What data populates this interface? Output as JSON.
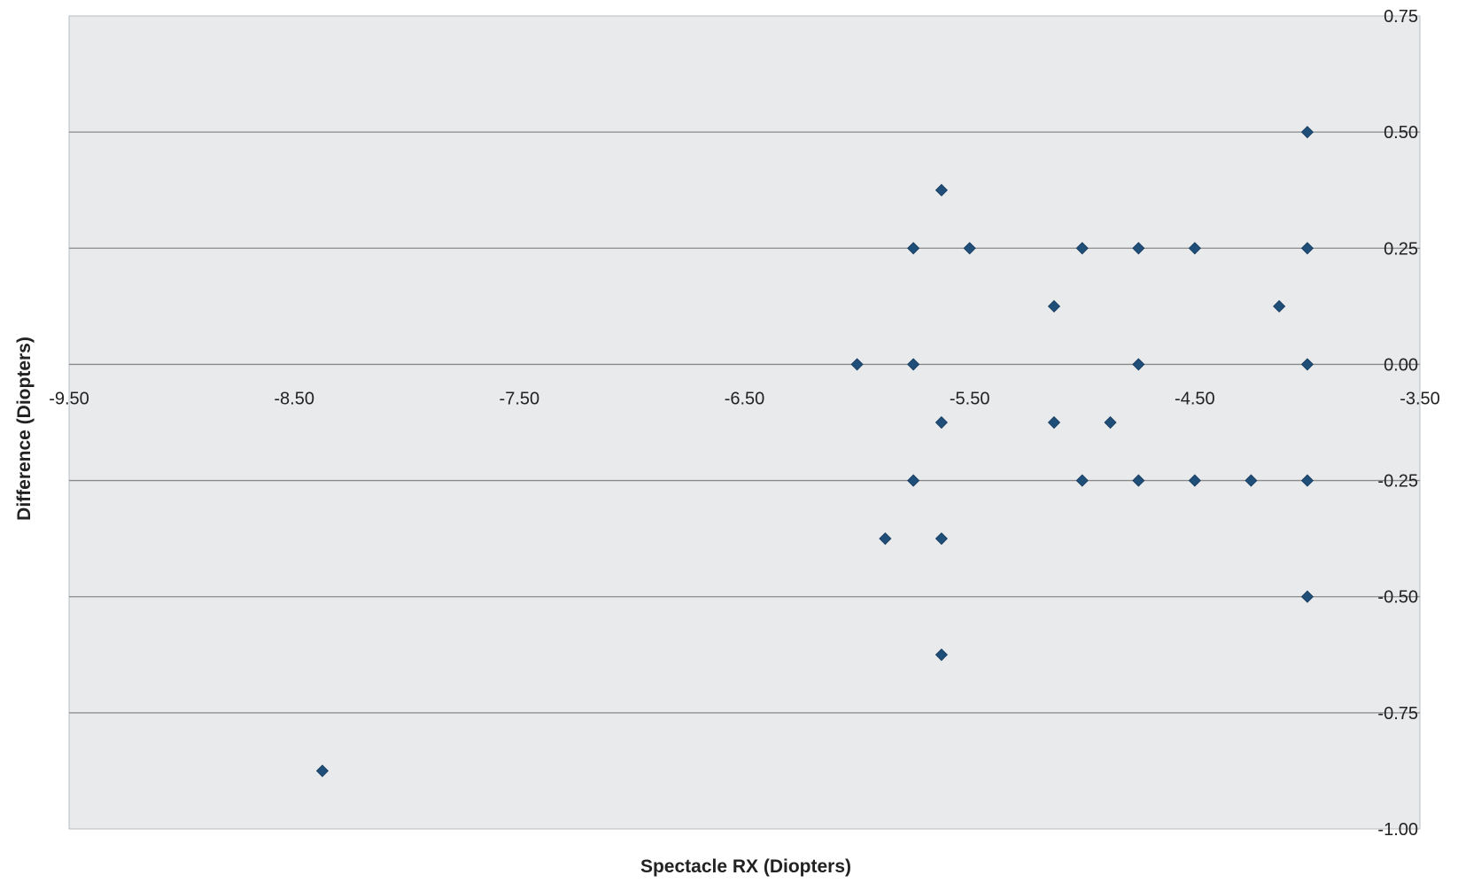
{
  "chart_data": {
    "type": "scatter",
    "title": "",
    "xlabel": "Spectacle RX (Diopters)",
    "ylabel": "Difference (Diopters)",
    "xlim": [
      -9.5,
      -3.5
    ],
    "ylim": [
      -1.0,
      0.75
    ],
    "x_ticks": [
      -9.5,
      -8.5,
      -7.5,
      -6.5,
      -5.5,
      -4.5,
      -3.5
    ],
    "x_tick_labels": [
      "-9.50",
      "-8.50",
      "-7.50",
      "-6.50",
      "-5.50",
      "-4.50",
      "-3.50"
    ],
    "y_ticks": [
      0.75,
      0.5,
      0.25,
      0.0,
      -0.25,
      -0.5,
      -0.75,
      -1.0
    ],
    "y_tick_labels": [
      "0.75",
      "0.50",
      "0.25",
      "0.00",
      "-0.25",
      "-0.50",
      "-0.75",
      "-1.00"
    ],
    "grid": "horizontal",
    "legend": "none",
    "colors": {
      "marker": "#1f4e79",
      "plot_background": "#e8eaec",
      "gridline": "#8a8a8a"
    },
    "series": [
      {
        "marker": "diamond",
        "points": [
          {
            "x": -8.375,
            "y": -0.875
          },
          {
            "x": -6.0,
            "y": 0.0
          },
          {
            "x": -5.875,
            "y": -0.375
          },
          {
            "x": -5.75,
            "y": 0.25
          },
          {
            "x": -5.75,
            "y": 0.0
          },
          {
            "x": -5.75,
            "y": -0.25
          },
          {
            "x": -5.625,
            "y": 0.375
          },
          {
            "x": -5.625,
            "y": -0.125
          },
          {
            "x": -5.625,
            "y": -0.375
          },
          {
            "x": -5.625,
            "y": -0.625
          },
          {
            "x": -5.5,
            "y": 0.25
          },
          {
            "x": -5.125,
            "y": 0.125
          },
          {
            "x": -5.125,
            "y": -0.125
          },
          {
            "x": -5.0,
            "y": 0.25
          },
          {
            "x": -5.0,
            "y": -0.25
          },
          {
            "x": -4.875,
            "y": -0.125
          },
          {
            "x": -4.75,
            "y": 0.25
          },
          {
            "x": -4.75,
            "y": 0.0
          },
          {
            "x": -4.75,
            "y": -0.25
          },
          {
            "x": -4.5,
            "y": 0.25
          },
          {
            "x": -4.5,
            "y": -0.25
          },
          {
            "x": -4.25,
            "y": -0.25
          },
          {
            "x": -4.125,
            "y": 0.125
          },
          {
            "x": -4.0,
            "y": 0.5
          },
          {
            "x": -4.0,
            "y": 0.25
          },
          {
            "x": -4.0,
            "y": 0.0
          },
          {
            "x": -4.0,
            "y": -0.25
          },
          {
            "x": -4.0,
            "y": -0.5
          }
        ]
      }
    ]
  }
}
